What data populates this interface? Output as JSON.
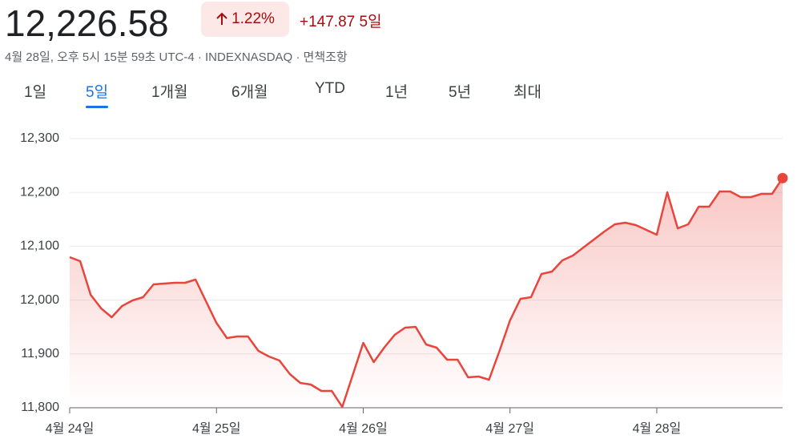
{
  "header": {
    "price": "12,226.58",
    "change_pct": "1.22%",
    "change_abs": "+147.87",
    "period": "5일",
    "subtitle": "4월 28일, 오후 5시 15분 59초 UTC-4 · INDEXNASDAQ · 면책조항"
  },
  "tabs": [
    "1일",
    "5일",
    "1개월",
    "6개월",
    "YTD",
    "1년",
    "5년",
    "최대"
  ],
  "active_tab": 1,
  "chart_data": {
    "type": "area",
    "color": "#e8453c",
    "grid": true,
    "x": [
      0,
      1,
      2,
      3,
      4,
      5,
      6,
      7,
      8,
      9,
      10,
      11,
      12,
      13,
      14,
      15,
      16,
      17,
      18,
      19,
      20,
      21,
      22,
      23,
      24,
      25,
      26,
      27,
      28,
      29,
      30,
      31,
      32,
      33,
      34,
      35,
      36,
      37,
      38,
      39,
      40,
      41,
      42,
      43,
      44,
      45,
      46,
      47,
      48,
      49,
      50,
      51,
      52,
      53,
      54,
      55,
      56,
      57,
      58,
      59,
      60,
      61,
      62,
      63,
      64,
      65,
      66,
      67,
      68
    ],
    "values": [
      12079.8,
      12072.3,
      12009.8,
      11984.5,
      11968.2,
      11989,
      11999.4,
      12005.4,
      12029.2,
      12030.7,
      12032.1,
      12032.1,
      12038.1,
      11997.9,
      11957.7,
      11929.5,
      11932.4,
      11932.4,
      11905.7,
      11895.2,
      11887.8,
      11862.5,
      11846.1,
      11843.2,
      11831.2,
      11831.2,
      11801.5,
      11861,
      11920.5,
      11884.8,
      11911.6,
      11935.4,
      11948.8,
      11950.3,
      11917.6,
      11911.6,
      11889.3,
      11889.3,
      11856.5,
      11858,
      11852.1,
      11905.7,
      11962.2,
      12002.4,
      12005.4,
      12048.5,
      12053,
      12073.8,
      12082.7,
      12097.6,
      12112.5,
      12127.4,
      12140.8,
      12143.7,
      12139.3,
      12130.4,
      12121.4,
      12200.3,
      12133.3,
      12140.8,
      12173.5,
      12173.5,
      12201.8,
      12201.8,
      12191.4,
      12191.4,
      12197.3,
      12197.3,
      12226.58
    ],
    "xlim": [
      0,
      68
    ],
    "xticks": [
      {
        "value": 0,
        "label": "4월 24일"
      },
      {
        "value": 14,
        "label": "4월 25일"
      },
      {
        "value": 28,
        "label": "4월 26일"
      },
      {
        "value": 42,
        "label": "4월 27일"
      },
      {
        "value": 56,
        "label": "4월 28일"
      }
    ],
    "ylim": [
      11800,
      12300
    ],
    "yticks": [
      {
        "value": 11800,
        "label": "11,800"
      },
      {
        "value": 11900,
        "label": "11,900"
      },
      {
        "value": 12000,
        "label": "12,000"
      },
      {
        "value": 12100,
        "label": "12,100"
      },
      {
        "value": 12200,
        "label": "12,200"
      },
      {
        "value": 12300,
        "label": "12,300"
      }
    ]
  }
}
